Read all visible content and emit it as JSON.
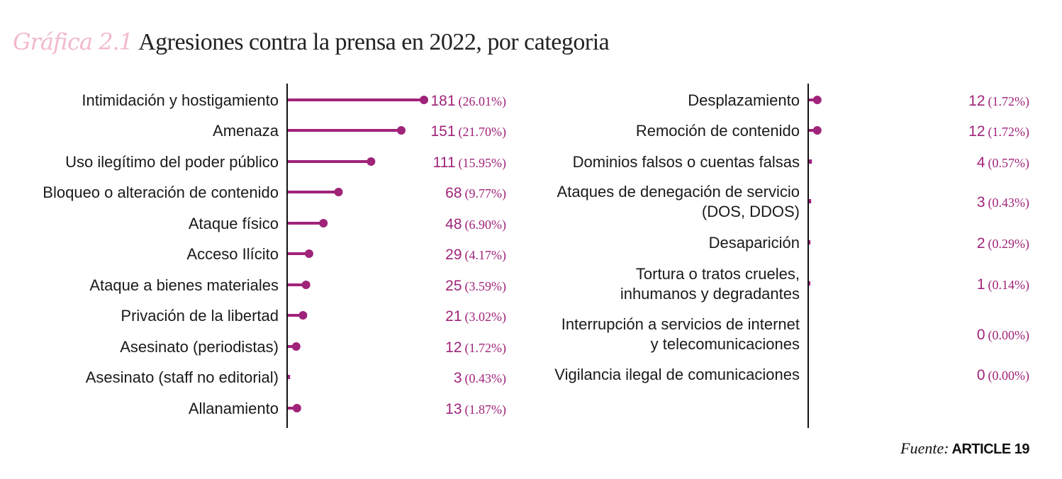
{
  "title": {
    "label": "Gráfica 2.1",
    "text": "Agresiones contra la prensa en 2022, por categoria"
  },
  "source": {
    "prefix": "Fuente:",
    "name": "ARTICLE 19"
  },
  "colors": {
    "accent": "#a0237a",
    "label_pink": "#f2b8cf",
    "axis": "#111111"
  },
  "chart_data": [
    {
      "type": "bar",
      "orientation": "horizontal",
      "style": "lollipop",
      "xlim": [
        0,
        181
      ],
      "grid": false,
      "categories": [
        "Intimidación y hostigamiento",
        "Amenaza",
        "Uso ilegítimo del poder público",
        "Bloqueo o alteración de contenido",
        "Ataque físico",
        "Acceso Ilícito",
        "Ataque a bienes materiales",
        "Privación de la libertad",
        "Asesinato (periodistas)",
        "Asesinato (staff no editorial)",
        "Allanamiento"
      ],
      "values": [
        181,
        151,
        111,
        68,
        48,
        29,
        25,
        21,
        12,
        3,
        13
      ],
      "value_labels": [
        "181",
        "151",
        "111",
        "68",
        "48",
        "29",
        "25",
        "21",
        "12",
        "3",
        "13"
      ],
      "percent_labels": [
        "(26.01%)",
        "(21.70%)",
        "(15.95%)",
        "(9.77%)",
        "(6.90%)",
        "(4.17%)",
        "(3.59%)",
        "(3.02%)",
        "(1.72%)",
        "(0.43%)",
        "(1.87%)"
      ]
    },
    {
      "type": "bar",
      "orientation": "horizontal",
      "style": "lollipop",
      "xlim": [
        0,
        181
      ],
      "grid": false,
      "categories": [
        "Desplazamiento",
        "Remoción de contenido",
        "Dominios falsos o cuentas falsas",
        "Ataques de denegación de servicio (DOS, DDOS)",
        "Desaparición",
        "Tortura o tratos crueles, inhumanos y degradantes",
        "Interrupción a servicios de internet y telecomunicaciones",
        "Vigilancia ilegal de comunicaciones"
      ],
      "category_lines": [
        [
          "Desplazamiento"
        ],
        [
          "Remoción de contenido"
        ],
        [
          "Dominios falsos o cuentas falsas"
        ],
        [
          "Ataques de denegación de servicio",
          "(DOS, DDOS)"
        ],
        [
          "Desaparición"
        ],
        [
          "Tortura o tratos crueles,",
          "inhumanos y degradantes"
        ],
        [
          "Interrupción a servicios de internet",
          "y telecomunicaciones"
        ],
        [
          "Vigilancia ilegal de comunicaciones"
        ]
      ],
      "values": [
        12,
        12,
        4,
        3,
        2,
        1,
        0,
        0
      ],
      "value_labels": [
        "12",
        "12",
        "4",
        "3",
        "2",
        "1",
        "0",
        "0"
      ],
      "percent_labels": [
        "(1.72%)",
        "(1.72%)",
        "(0.57%)",
        "(0.43%)",
        "(0.29%)",
        "(0.14%)",
        "(0.00%)",
        "(0.00%)"
      ]
    }
  ]
}
